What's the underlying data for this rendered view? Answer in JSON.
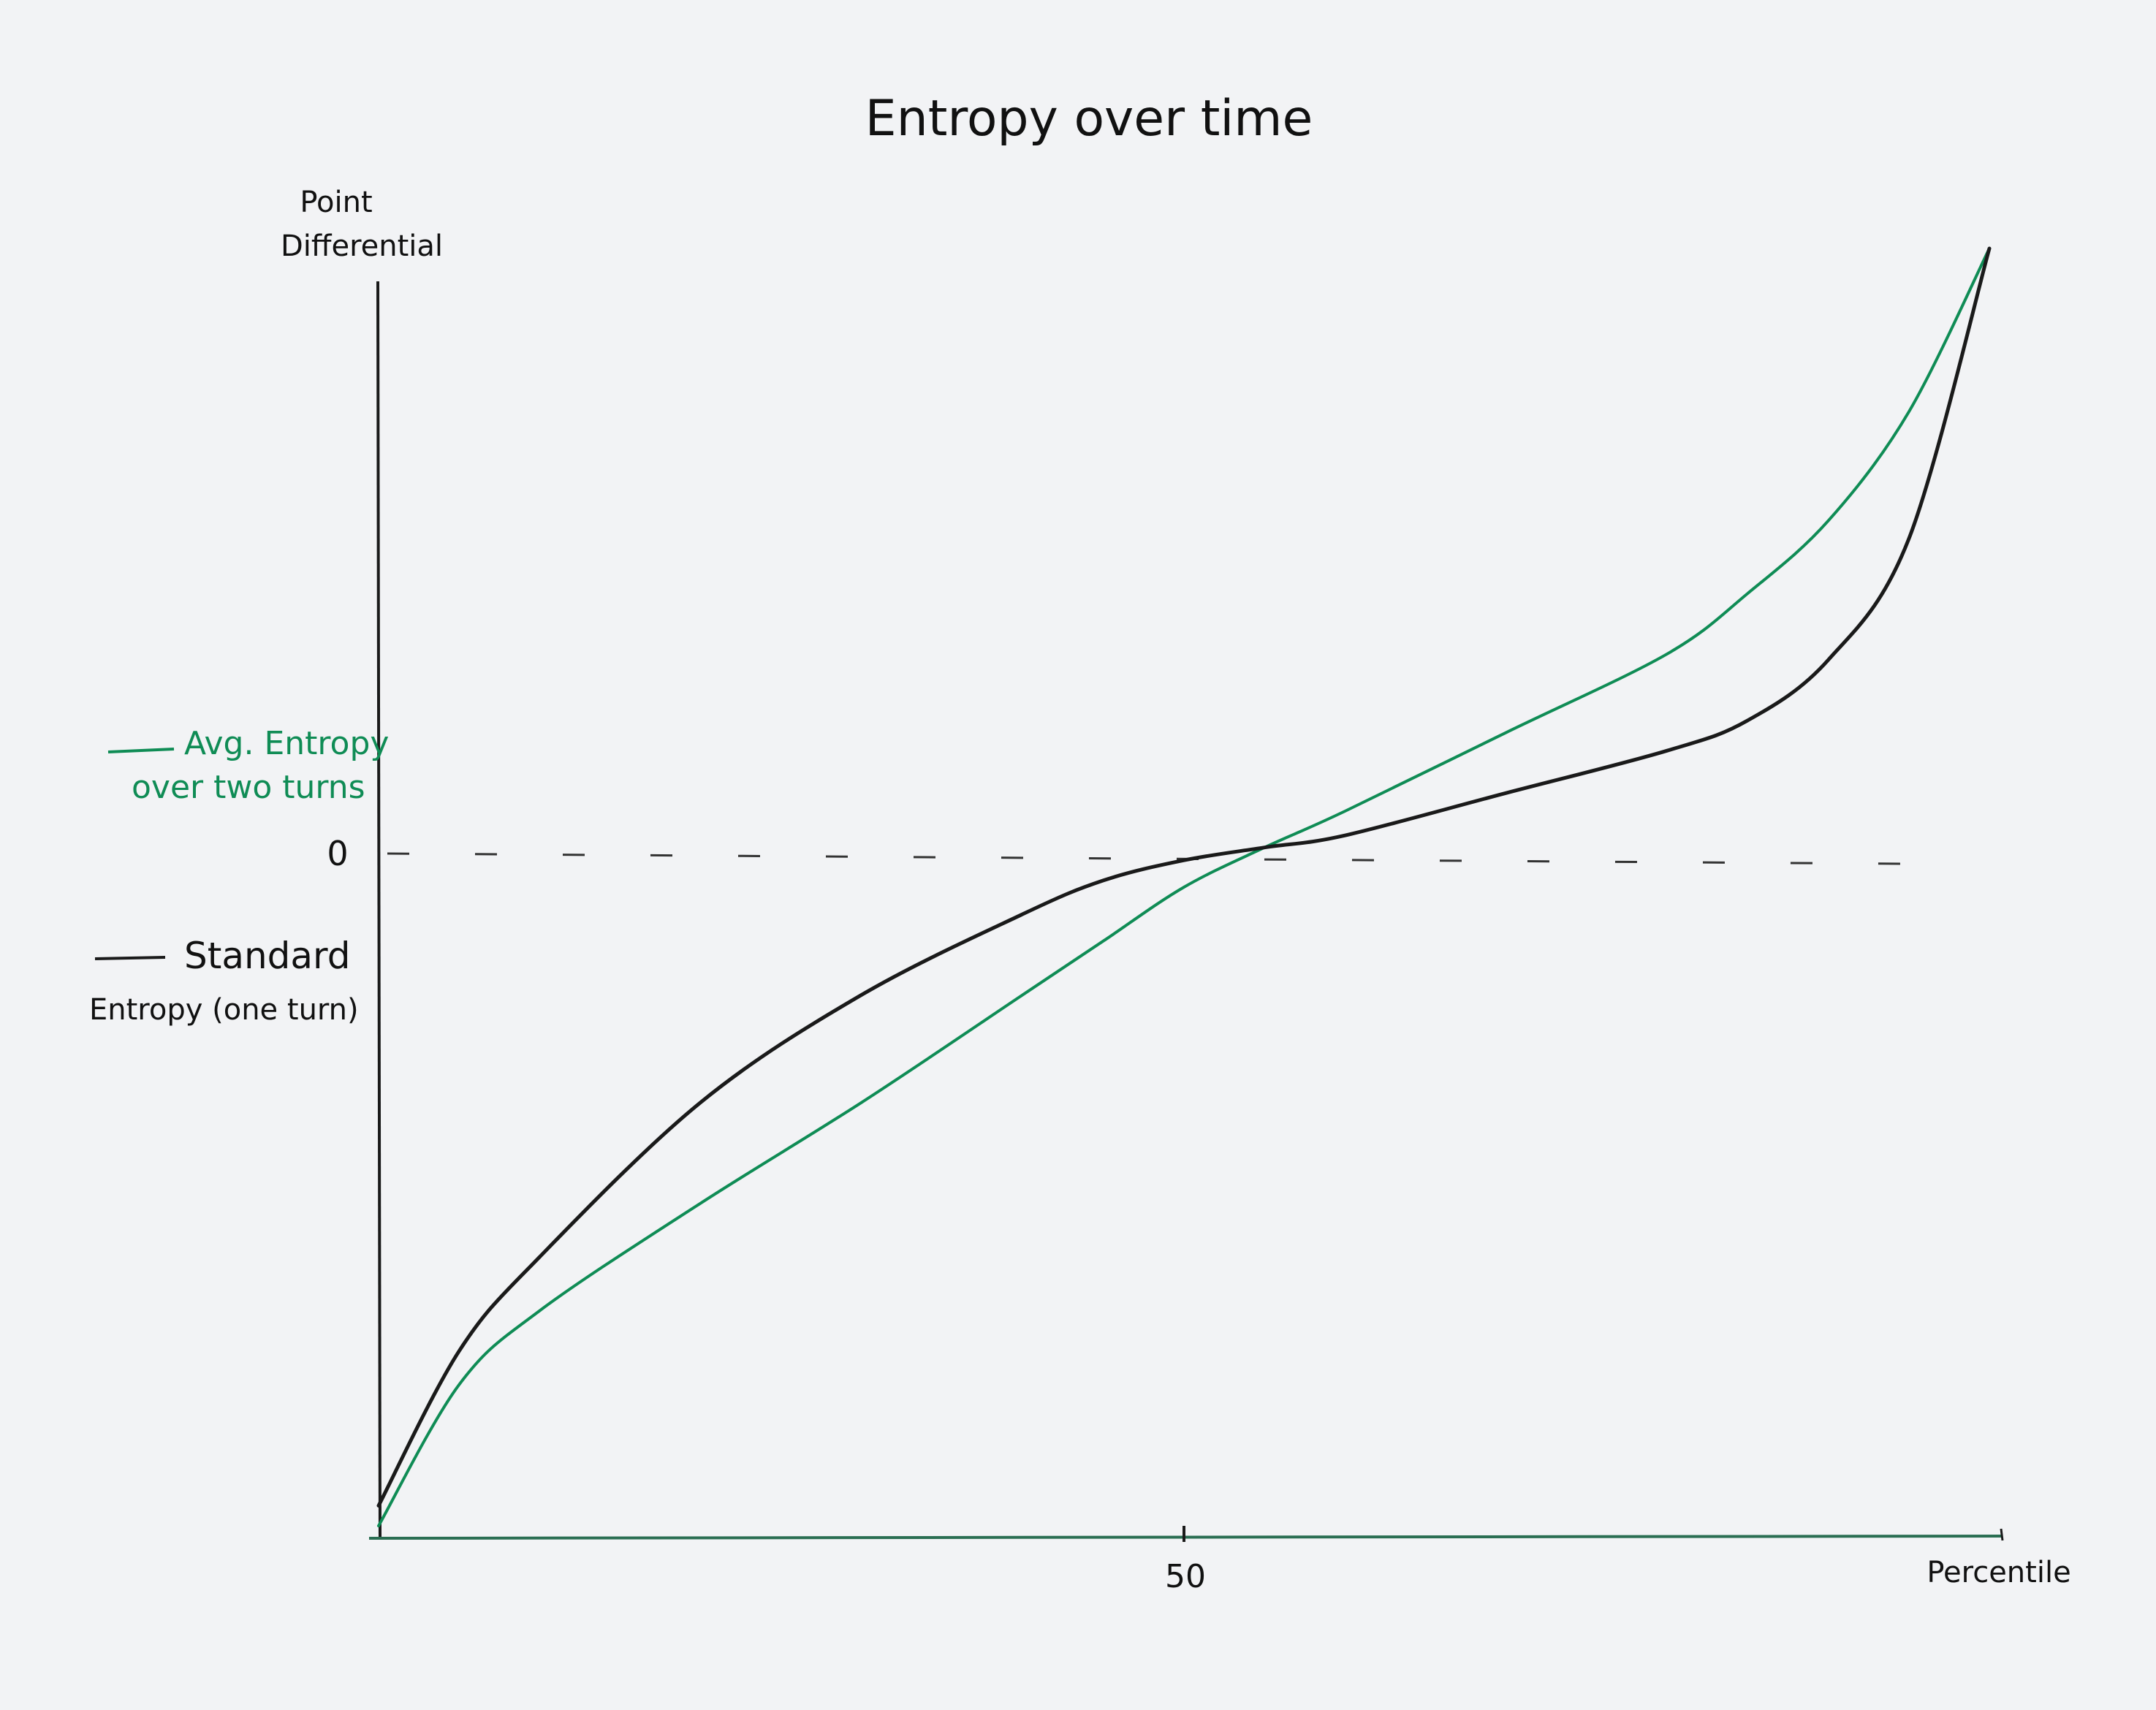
{
  "chart_data": {
    "type": "line",
    "title": "Entropy over time",
    "ylabel_line1": "Point",
    "ylabel_line2": "Differential",
    "xlabel": "Percentile",
    "x_ticks": [
      "50"
    ],
    "y_ticks": [
      "0"
    ],
    "xlim": [
      0,
      100
    ],
    "ylim": [
      -100,
      100
    ],
    "grid": false,
    "legend_position": "left-of-y-axis",
    "zero_reference_line": "dashed",
    "series": [
      {
        "name": "Avg. Entropy over two turns",
        "legend_line1": "Avg. Entropy",
        "legend_line2": "over two turns",
        "color": "#0f8c55",
        "x": [
          0,
          5,
          10,
          20,
          30,
          40,
          45,
          50,
          55,
          60,
          70,
          80,
          85,
          90,
          95,
          100
        ],
        "y": [
          -100,
          -79,
          -68,
          -52,
          -37,
          -21,
          -13,
          -5,
          1,
          7,
          20,
          33,
          43,
          55,
          73,
          100
        ]
      },
      {
        "name": "Standard Entropy (one turn)",
        "legend_line1": "Standard",
        "legend_line2": "Entropy (one turn)",
        "color": "#1a1a1a",
        "x": [
          0,
          5,
          10,
          20,
          30,
          40,
          45,
          50,
          55,
          60,
          70,
          80,
          85,
          90,
          95,
          100
        ],
        "y": [
          -97,
          -74,
          -60,
          -37,
          -21,
          -9,
          -4,
          -1,
          1,
          3,
          10,
          17,
          22,
          32,
          52,
          100
        ]
      }
    ]
  }
}
